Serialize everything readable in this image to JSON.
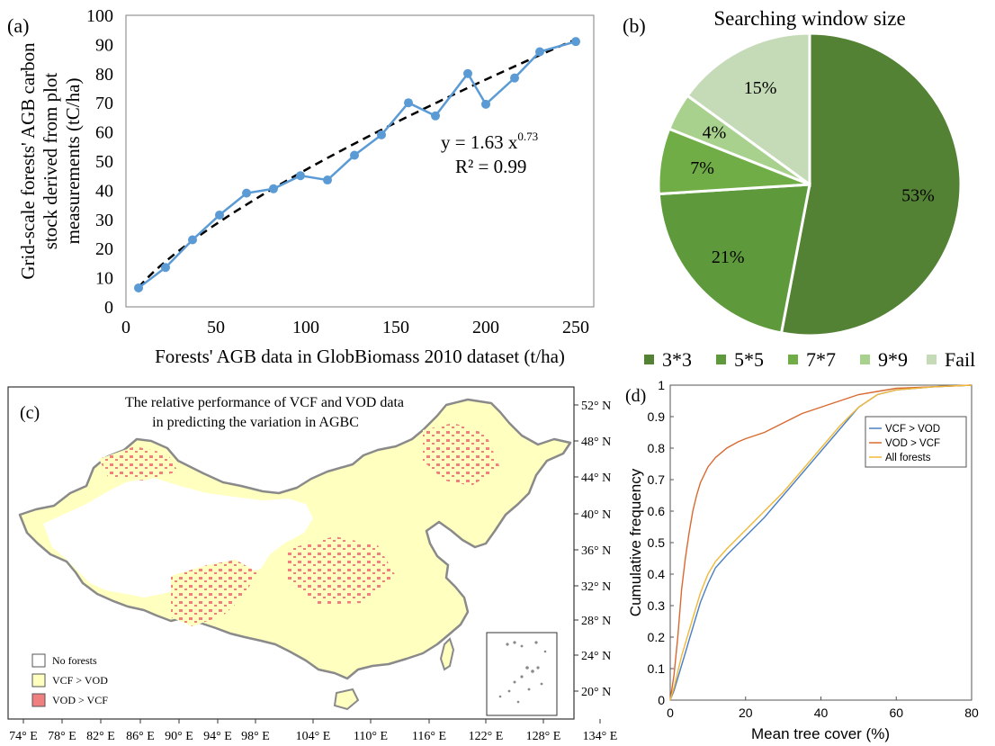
{
  "panels": {
    "a": "(a)",
    "b": "(b)",
    "c": "(c)",
    "d": "(d)"
  },
  "chart_data": [
    {
      "type": "line",
      "panel": "(a)",
      "xlabel": "Forests' AGB data in GlobBiomass 2010 dataset (t/ha)",
      "ylabel_lines": [
        "Grid-scale forests' AGB carbon",
        "stock derived from plot",
        "measurements (tC/ha)"
      ],
      "xlim": [
        0,
        260
      ],
      "ylim": [
        0,
        100
      ],
      "xticks": [
        "0",
        "50",
        "100",
        "150",
        "200",
        "250"
      ],
      "xtick_values": [
        0,
        50,
        100,
        150,
        200,
        250
      ],
      "yticks": [
        "0",
        "10",
        "20",
        "30",
        "40",
        "50",
        "60",
        "70",
        "80",
        "90",
        "100"
      ],
      "ytick_values": [
        0,
        10,
        20,
        30,
        40,
        50,
        60,
        70,
        80,
        90,
        100
      ],
      "series": [
        {
          "color": "#5b9bd5",
          "x": [
            7,
            22,
            37,
            52,
            67,
            82,
            97,
            112,
            127,
            142,
            157,
            172,
            190,
            200,
            216,
            230,
            250
          ],
          "y": [
            6.5,
            13.5,
            23,
            31.5,
            39,
            40.5,
            45,
            43.5,
            52,
            59,
            70,
            65.5,
            80,
            69.5,
            78.5,
            87.5,
            91
          ]
        }
      ],
      "trendline": {
        "a": 1.63,
        "b": 0.73,
        "style": "dashed",
        "color": "#000000"
      },
      "equation": {
        "prefix": "y = 1.63 x",
        "exponent": "0.73",
        "r2": "R² = 0.99"
      }
    },
    {
      "type": "pie",
      "panel": "(b)",
      "title": "Searching window size",
      "slices": [
        {
          "label": "3*3",
          "value": 53,
          "text": "53%",
          "color": "#548235"
        },
        {
          "label": "5*5",
          "value": 21,
          "text": "21%",
          "color": "#5e9a3c"
        },
        {
          "label": "7*7",
          "value": 7,
          "text": "7%",
          "color": "#70ad47"
        },
        {
          "label": "9*9",
          "value": 4,
          "text": "4%",
          "color": "#a9d18e"
        },
        {
          "label": "Fail",
          "value": 15,
          "text": "15%",
          "color": "#c5dbb8"
        }
      ],
      "legend_position": "bottom"
    },
    {
      "type": "map",
      "panel": "(c)",
      "title_lines": [
        "The relative performance of VCF and VOD data",
        "in predicting the variation in AGBC"
      ],
      "lon_ticks": [
        "74° E",
        "78° E",
        "82° E",
        "86° E",
        "90° E",
        "94° E",
        "98° E",
        "104° E",
        "110° E",
        "116° E",
        "122° E",
        "128° E",
        "134° E"
      ],
      "lat_ticks": [
        "52° N",
        "48° N",
        "44° N",
        "40° N",
        "36° N",
        "32° N",
        "28° N",
        "24° N",
        "20° N"
      ],
      "legend": [
        {
          "label": "No forests",
          "color": "#ffffff"
        },
        {
          "label": "VCF > VOD",
          "color": "#ffffc0"
        },
        {
          "label": "VOD > VCF",
          "color": "#f08080"
        }
      ]
    },
    {
      "type": "line",
      "panel": "(d)",
      "xlabel": "Mean tree cover (%)",
      "ylabel": "Cumulative frequency",
      "xlim": [
        0,
        80
      ],
      "ylim": [
        0,
        1
      ],
      "xticks": [
        "0",
        "20",
        "40",
        "60",
        "80"
      ],
      "xtick_values": [
        0,
        20,
        40,
        60,
        80
      ],
      "yticks": [
        "0",
        "0.1",
        "0.2",
        "0.3",
        "0.4",
        "0.5",
        "0.6",
        "0.7",
        "0.8",
        "0.9",
        "1"
      ],
      "ytick_values": [
        0,
        0.1,
        0.2,
        0.3,
        0.4,
        0.5,
        0.6,
        0.7,
        0.8,
        0.9,
        1
      ],
      "legend_position": "top-right",
      "series": [
        {
          "name": "VCF > VOD",
          "color": "#4a7fc1",
          "x": [
            0,
            1,
            2,
            3,
            4,
            5,
            6,
            8,
            10,
            12,
            15,
            20,
            25,
            30,
            35,
            40,
            45,
            50,
            55,
            60,
            70,
            80
          ],
          "y": [
            0,
            0.03,
            0.07,
            0.11,
            0.15,
            0.19,
            0.23,
            0.31,
            0.37,
            0.42,
            0.46,
            0.52,
            0.58,
            0.65,
            0.72,
            0.79,
            0.86,
            0.93,
            0.97,
            0.985,
            0.995,
            1.0
          ]
        },
        {
          "name": "VOD > VCF",
          "color": "#d86a30",
          "x": [
            0,
            1,
            2,
            3,
            4,
            5,
            6,
            7,
            8,
            10,
            12,
            15,
            18,
            20,
            25,
            30,
            35,
            40,
            45,
            50,
            55,
            60,
            70,
            80
          ],
          "y": [
            0,
            0.08,
            0.2,
            0.35,
            0.45,
            0.53,
            0.6,
            0.65,
            0.69,
            0.74,
            0.77,
            0.8,
            0.82,
            0.83,
            0.85,
            0.88,
            0.91,
            0.93,
            0.95,
            0.97,
            0.98,
            0.99,
            0.995,
            1.0
          ]
        },
        {
          "name": "All forests",
          "color": "#f0b93a",
          "x": [
            0,
            1,
            2,
            3,
            4,
            5,
            6,
            8,
            10,
            12,
            15,
            20,
            25,
            30,
            35,
            40,
            45,
            50,
            55,
            60,
            70,
            80
          ],
          "y": [
            0,
            0.04,
            0.09,
            0.14,
            0.18,
            0.22,
            0.26,
            0.34,
            0.4,
            0.44,
            0.48,
            0.54,
            0.6,
            0.66,
            0.73,
            0.8,
            0.87,
            0.93,
            0.97,
            0.985,
            0.995,
            1.0
          ]
        }
      ]
    }
  ]
}
